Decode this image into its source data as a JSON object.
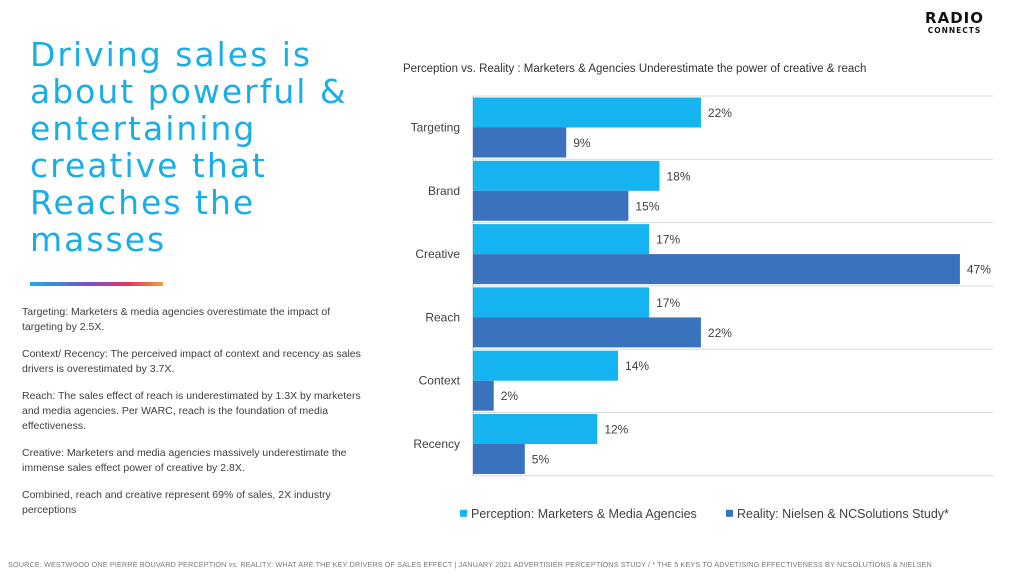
{
  "headline": "Driving sales is about powerful & entertaining creative that Reaches the masses",
  "logo": {
    "line1": "RADIO",
    "line2": "CONNECTS"
  },
  "notes": [
    "Targeting: Marketers & media agencies overestimate the impact of targeting by 2.5X.",
    "Context/ Recency: The perceived impact of context and recency as sales drivers is overestimated by 3.7X.",
    "Reach: The sales effect of reach is underestimated by 1.3X by marketers and media agencies. Per WARC, reach is the foundation of media effectiveness.",
    "Creative: Marketers and media agencies massively underestimate the immense sales effect power of creative by 2.8X.",
    "Combined, reach and creative represent 69% of sales, 2X industry perceptions"
  ],
  "footer": "SOURCE: WESTWOOD ONE PIERRE BOUVARD PERCEPTION vs. REALITY: WHAT ARE THE KEY DRIVERS OF SALES EFFECT | JANUARY 2021 ADVERTISIER PERCEPTIONS STUDY / * THE 5 KEYS TO ADVETISING EFFECTIVENESS BY NCSOLUTIONS & NIELSEN",
  "chart_data": {
    "type": "bar",
    "orientation": "horizontal",
    "title": "Perception vs. Reality : Marketers & Agencies Underestimate the power of creative & reach",
    "categories": [
      "Targeting",
      "Brand",
      "Creative",
      "Reach",
      "Context",
      "Recency"
    ],
    "series": [
      {
        "name": "Perception: Marketers & Media Agencies",
        "values": [
          22,
          18,
          17,
          17,
          14,
          12
        ],
        "labels": [
          "22%",
          "18%",
          "17%",
          "17%",
          "14%",
          "12%"
        ],
        "color": "#15b4f1"
      },
      {
        "name": "Reality: Nielsen & NCSolutions Study*",
        "values": [
          9,
          15,
          47,
          22,
          2,
          5
        ],
        "labels": [
          "9%",
          "15%",
          "47%",
          "22%",
          "2%",
          "5%"
        ],
        "color": "#3a72bd"
      }
    ],
    "xlim": [
      0,
      50
    ],
    "grid": true,
    "legend": "bottom"
  }
}
